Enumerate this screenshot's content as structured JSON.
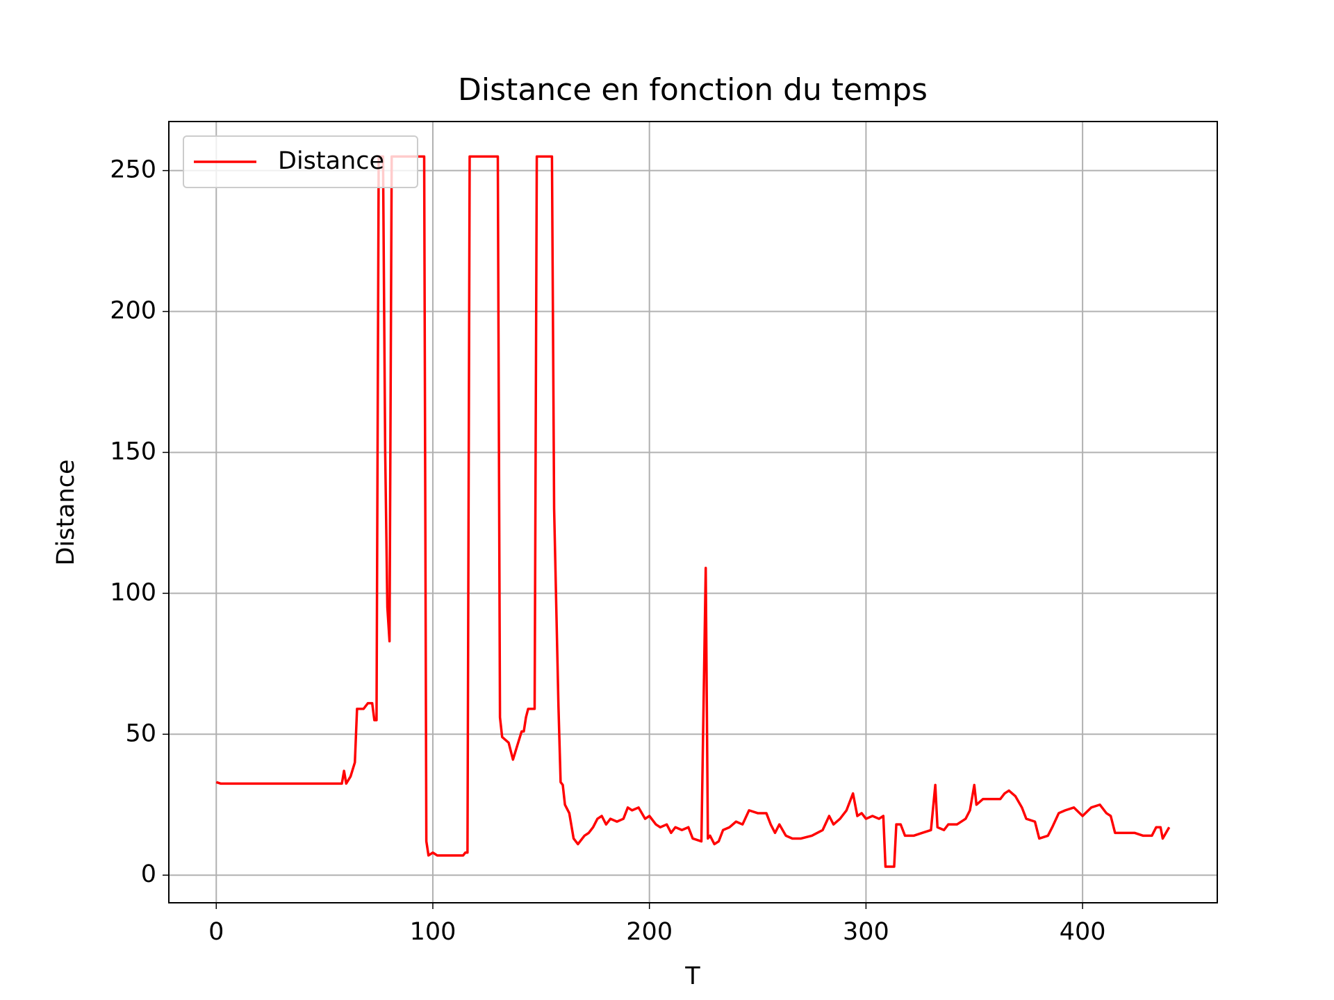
{
  "chart_data": {
    "type": "line",
    "title": "Distance en fonction du temps",
    "x_label": "T",
    "y_label": "Distance",
    "x": [
      0,
      2,
      10,
      20,
      30,
      40,
      50,
      58,
      59,
      60,
      62,
      64,
      65,
      68,
      70,
      72,
      73,
      74,
      75,
      77,
      78,
      79,
      80,
      81,
      96,
      97,
      98,
      100,
      102,
      106,
      110,
      114,
      115,
      116,
      117,
      130,
      131,
      132,
      135,
      137,
      139,
      141,
      142,
      143,
      144,
      147,
      148,
      155,
      156,
      158,
      159,
      160,
      161,
      163,
      165,
      167,
      170,
      172,
      174,
      176,
      178,
      180,
      182,
      185,
      188,
      190,
      192,
      195,
      198,
      200,
      203,
      205,
      208,
      210,
      212,
      215,
      218,
      220,
      224,
      226,
      227,
      228,
      230,
      232,
      234,
      237,
      240,
      243,
      246,
      250,
      254,
      256,
      258,
      260,
      263,
      266,
      270,
      275,
      280,
      283,
      285,
      288,
      291,
      294,
      296,
      298,
      300,
      303,
      306,
      308,
      309,
      313,
      314,
      316,
      318,
      322,
      326,
      330,
      332,
      333,
      336,
      338,
      342,
      346,
      348,
      350,
      351,
      354,
      358,
      362,
      364,
      366,
      369,
      372,
      374,
      378,
      380,
      384,
      386,
      389,
      392,
      396,
      400,
      404,
      408,
      411,
      413,
      415,
      420,
      424,
      428,
      432,
      434,
      436,
      437,
      440
    ],
    "series": [
      {
        "name": "Distance",
        "color": "red",
        "values": [
          33,
          32.5,
          32.5,
          32.5,
          32.5,
          32.5,
          32.5,
          32.5,
          37,
          32.5,
          35,
          40,
          59,
          59,
          61,
          61,
          55,
          55,
          255,
          255,
          150,
          95,
          83,
          255,
          255,
          12,
          7,
          8,
          7,
          7,
          7,
          7,
          8,
          8,
          255,
          255,
          56,
          49,
          47,
          41,
          46,
          51,
          51,
          56,
          59,
          59,
          255,
          255,
          130,
          60,
          33,
          32,
          25,
          22,
          13,
          11,
          14,
          15,
          17,
          20,
          21,
          18,
          20,
          19,
          20,
          24,
          23,
          24,
          20,
          21,
          18,
          17,
          18,
          15,
          17,
          16,
          17,
          13,
          12,
          109,
          13,
          14,
          11,
          12,
          16,
          17,
          19,
          18,
          23,
          22,
          22,
          18,
          15,
          18,
          14,
          13,
          13,
          14,
          16,
          21,
          18,
          20,
          23,
          29,
          21,
          22,
          20,
          21,
          20,
          21,
          3,
          3,
          18,
          18,
          14,
          14,
          15,
          16,
          32,
          17,
          16,
          18,
          18,
          20,
          23,
          32,
          25,
          27,
          27,
          27,
          29,
          30,
          28,
          24,
          20,
          19,
          13,
          14,
          17,
          22,
          23,
          24,
          21,
          24,
          25,
          22,
          21,
          15,
          15,
          15,
          14,
          14,
          17,
          17,
          13,
          17
        ]
      }
    ],
    "xlim": [
      -21.9,
      462.2
    ],
    "ylim": [
      -9.8,
      267.4
    ],
    "xticks": [
      0,
      100,
      200,
      300,
      400
    ],
    "yticks": [
      0,
      50,
      100,
      150,
      200,
      250
    ],
    "grid": true,
    "legend": "upper left"
  }
}
